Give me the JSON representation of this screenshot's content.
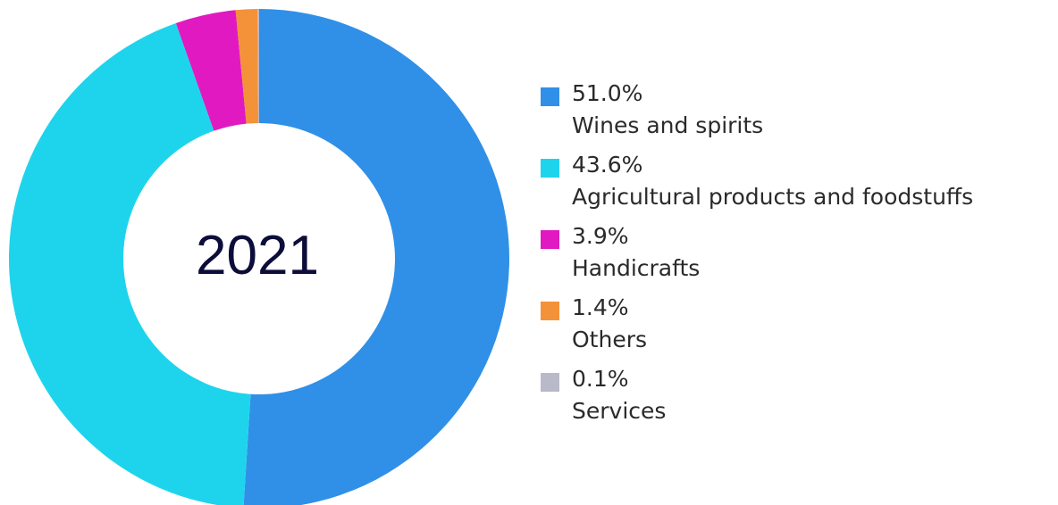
{
  "chart_data": {
    "type": "pie",
    "center_label": "2021",
    "slices": [
      {
        "label": "Wines and spirits",
        "value": 51.0,
        "value_label": "51.0%",
        "color": "#3090e8"
      },
      {
        "label": "Agricultural products and foodstuffs",
        "value": 43.6,
        "value_label": "43.6%",
        "color": "#1ed4ec"
      },
      {
        "label": "Handicrafts",
        "value": 3.9,
        "value_label": "3.9%",
        "color": "#e01ac0"
      },
      {
        "label": "Others",
        "value": 1.4,
        "value_label": "1.4%",
        "color": "#f4923a"
      },
      {
        "label": "Services",
        "value": 0.1,
        "value_label": "0.1%",
        "color": "#b9b9c9"
      }
    ],
    "legend_position": "right"
  }
}
